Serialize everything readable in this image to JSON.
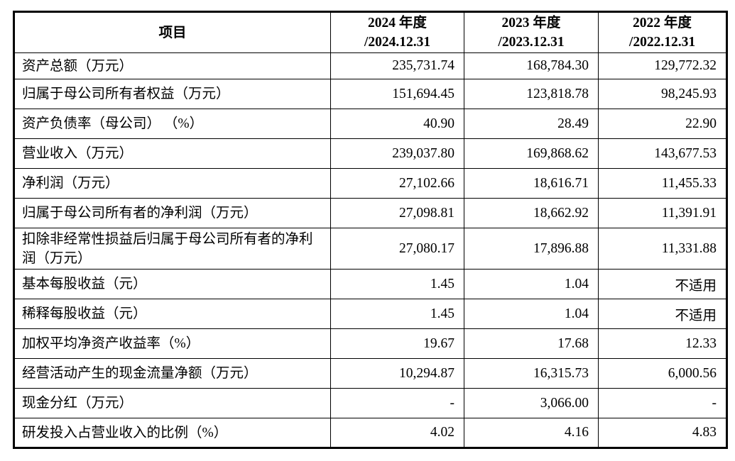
{
  "table": {
    "header": {
      "item_col": "项目",
      "year_cols": [
        {
          "line1": "2024 年度",
          "line2": "/2024.12.31"
        },
        {
          "line1": "2023 年度",
          "line2": "/2023.12.31"
        },
        {
          "line1": "2022 年度",
          "line2": "/2022.12.31"
        }
      ]
    },
    "rows": [
      {
        "item": "资产总额（万元）",
        "v2024": "235,731.74",
        "v2023": "168,784.30",
        "v2022": "129,772.32",
        "tall": false
      },
      {
        "item": "归属于母公司所有者权益（万元）",
        "v2024": "151,694.45",
        "v2023": "123,818.78",
        "v2022": "98,245.93",
        "tall": false
      },
      {
        "item": "资产负债率（母公司） （%）",
        "v2024": "40.90",
        "v2023": "28.49",
        "v2022": "22.90",
        "tall": false
      },
      {
        "item": "营业收入（万元）",
        "v2024": "239,037.80",
        "v2023": "169,868.62",
        "v2022": "143,677.53",
        "tall": false
      },
      {
        "item": "净利润（万元）",
        "v2024": "27,102.66",
        "v2023": "18,616.71",
        "v2022": "11,455.33",
        "tall": false
      },
      {
        "item": "归属于母公司所有者的净利润（万元）",
        "v2024": "27,098.81",
        "v2023": "18,662.92",
        "v2022": "11,391.91",
        "tall": false
      },
      {
        "item": "扣除非经常性损益后归属于母公司所有者的净利润（万元）",
        "v2024": "27,080.17",
        "v2023": "17,896.88",
        "v2022": "11,331.88",
        "tall": true
      },
      {
        "item": "基本每股收益（元）",
        "v2024": "1.45",
        "v2023": "1.04",
        "v2022": "不适用",
        "tall": false
      },
      {
        "item": "稀释每股收益（元）",
        "v2024": "1.45",
        "v2023": "1.04",
        "v2022": "不适用",
        "tall": false
      },
      {
        "item": "加权平均净资产收益率（%）",
        "v2024": "19.67",
        "v2023": "17.68",
        "v2022": "12.33",
        "tall": false
      },
      {
        "item": "经营活动产生的现金流量净额（万元）",
        "v2024": "10,294.87",
        "v2023": "16,315.73",
        "v2022": "6,000.56",
        "tall": false
      },
      {
        "item": "现金分红（万元）",
        "v2024": "-",
        "v2023": "3,066.00",
        "v2022": "-",
        "tall": false
      },
      {
        "item": "研发投入占营业收入的比例（%）",
        "v2024": "4.02",
        "v2023": "4.16",
        "v2022": "4.83",
        "tall": false
      }
    ]
  }
}
